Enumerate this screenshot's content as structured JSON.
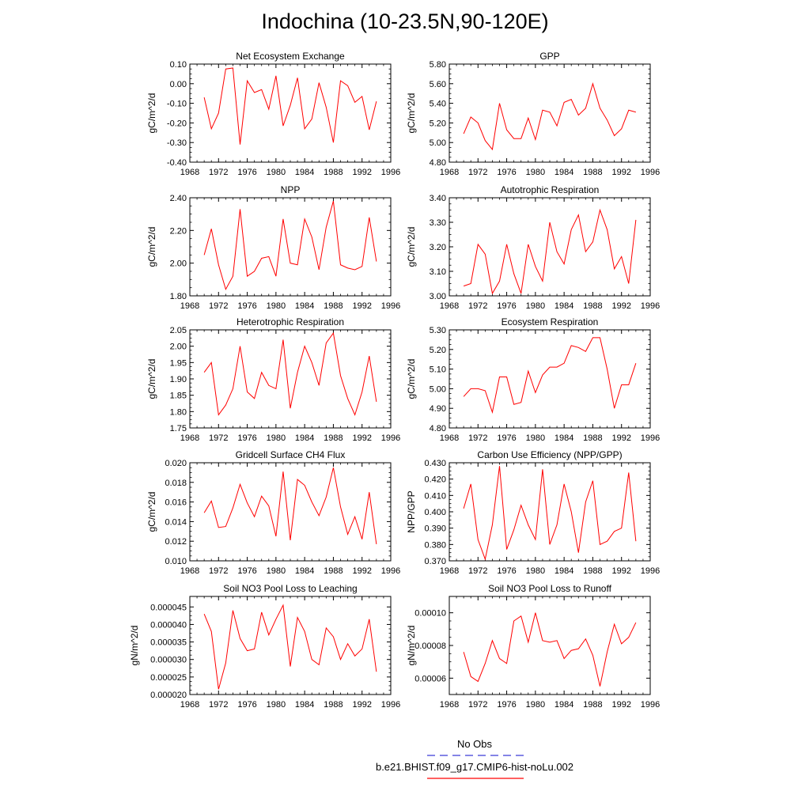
{
  "page_title": "Indochina (10-23.5N,90-120E)",
  "legend": {
    "obs_label": "No Obs",
    "model_label": "b.e21.BHIST.f09_g17.CMIP6-hist-noLu.002",
    "obs_color": "#3b3bd6",
    "model_color": "#ff0000"
  },
  "chart_data": [
    {
      "type": "line",
      "title": "Net Ecosystem Exchange",
      "xlabel": "",
      "ylabel": "gC/m^2/d",
      "xlim": [
        1968,
        1996
      ],
      "ylim": [
        -0.4,
        0.1
      ],
      "x_ticks": [
        1968,
        1972,
        1976,
        1980,
        1984,
        1988,
        1992,
        1996
      ],
      "y_ticks": [
        "0.10",
        "0.00",
        "-0.10",
        "-0.20",
        "-0.30",
        "-0.40"
      ],
      "y_tick_values": [
        0.1,
        0.0,
        -0.1,
        -0.2,
        -0.3,
        -0.4
      ],
      "x": [
        1970,
        1971,
        1972,
        1973,
        1974,
        1975,
        1976,
        1977,
        1978,
        1979,
        1980,
        1981,
        1982,
        1983,
        1984,
        1985,
        1986,
        1987,
        1988,
        1989,
        1990,
        1991,
        1992,
        1993,
        1994
      ],
      "series": [
        {
          "color": "#ff0000",
          "values": [
            -0.07,
            -0.23,
            -0.15,
            0.075,
            0.08,
            -0.31,
            0.015,
            -0.045,
            -0.03,
            -0.13,
            0.04,
            -0.215,
            -0.11,
            0.03,
            -0.23,
            -0.18,
            0.005,
            -0.12,
            -0.3,
            0.015,
            -0.01,
            -0.095,
            -0.065,
            -0.235,
            -0.09
          ]
        }
      ]
    },
    {
      "type": "line",
      "title": "GPP",
      "xlabel": "",
      "ylabel": "gC/m^2/d",
      "xlim": [
        1968,
        1996
      ],
      "ylim": [
        4.8,
        5.8
      ],
      "x_ticks": [
        1968,
        1972,
        1976,
        1980,
        1984,
        1988,
        1992,
        1996
      ],
      "y_ticks": [
        "5.80",
        "5.60",
        "5.40",
        "5.20",
        "5.00",
        "4.80"
      ],
      "y_tick_values": [
        5.8,
        5.6,
        5.4,
        5.2,
        5.0,
        4.8
      ],
      "x": [
        1970,
        1971,
        1972,
        1973,
        1974,
        1975,
        1976,
        1977,
        1978,
        1979,
        1980,
        1981,
        1982,
        1983,
        1984,
        1985,
        1986,
        1987,
        1988,
        1989,
        1990,
        1991,
        1992,
        1993,
        1994
      ],
      "series": [
        {
          "color": "#ff0000",
          "values": [
            5.09,
            5.26,
            5.2,
            5.02,
            4.93,
            5.4,
            5.13,
            5.04,
            5.04,
            5.25,
            5.03,
            5.33,
            5.31,
            5.17,
            5.41,
            5.44,
            5.28,
            5.35,
            5.6,
            5.35,
            5.23,
            5.07,
            5.14,
            5.33,
            5.31
          ]
        }
      ]
    },
    {
      "type": "line",
      "title": "NPP",
      "xlabel": "",
      "ylabel": "gC/m^2/d",
      "xlim": [
        1968,
        1996
      ],
      "ylim": [
        1.8,
        2.4
      ],
      "x_ticks": [
        1968,
        1972,
        1976,
        1980,
        1984,
        1988,
        1992,
        1996
      ],
      "y_ticks": [
        "2.40",
        "2.20",
        "2.00",
        "1.80"
      ],
      "y_tick_values": [
        2.4,
        2.2,
        2.0,
        1.8
      ],
      "x": [
        1970,
        1971,
        1972,
        1973,
        1974,
        1975,
        1976,
        1977,
        1978,
        1979,
        1980,
        1981,
        1982,
        1983,
        1984,
        1985,
        1986,
        1987,
        1988,
        1989,
        1990,
        1991,
        1992,
        1993,
        1994
      ],
      "series": [
        {
          "color": "#ff0000",
          "values": [
            2.05,
            2.21,
            1.99,
            1.84,
            1.92,
            2.33,
            1.92,
            1.95,
            2.03,
            2.04,
            1.92,
            2.27,
            2.0,
            1.99,
            2.27,
            2.16,
            1.96,
            2.22,
            2.38,
            1.99,
            1.97,
            1.96,
            1.98,
            2.28,
            2.01
          ]
        }
      ]
    },
    {
      "type": "line",
      "title": "Autotrophic Respiration",
      "xlabel": "",
      "ylabel": "gC/m^2/d",
      "xlim": [
        1968,
        1996
      ],
      "ylim": [
        3.0,
        3.4
      ],
      "x_ticks": [
        1968,
        1972,
        1976,
        1980,
        1984,
        1988,
        1992,
        1996
      ],
      "y_ticks": [
        "3.40",
        "3.30",
        "3.20",
        "3.10",
        "3.00"
      ],
      "y_tick_values": [
        3.4,
        3.3,
        3.2,
        3.1,
        3.0
      ],
      "x": [
        1970,
        1971,
        1972,
        1973,
        1974,
        1975,
        1976,
        1977,
        1978,
        1979,
        1980,
        1981,
        1982,
        1983,
        1984,
        1985,
        1986,
        1987,
        1988,
        1989,
        1990,
        1991,
        1992,
        1993,
        1994
      ],
      "series": [
        {
          "color": "#ff0000",
          "values": [
            3.04,
            3.05,
            3.21,
            3.17,
            3.01,
            3.06,
            3.21,
            3.09,
            3.01,
            3.21,
            3.12,
            3.06,
            3.3,
            3.18,
            3.13,
            3.27,
            3.33,
            3.18,
            3.22,
            3.35,
            3.27,
            3.11,
            3.16,
            3.05,
            3.31
          ]
        }
      ]
    },
    {
      "type": "line",
      "title": "Heterotrophic Respiration",
      "xlabel": "",
      "ylabel": "gC/m^2/d",
      "xlim": [
        1968,
        1996
      ],
      "ylim": [
        1.75,
        2.05
      ],
      "x_ticks": [
        1968,
        1972,
        1976,
        1980,
        1984,
        1988,
        1992,
        1996
      ],
      "y_ticks": [
        "2.05",
        "2.00",
        "1.95",
        "1.90",
        "1.85",
        "1.80",
        "1.75"
      ],
      "y_tick_values": [
        2.05,
        2.0,
        1.95,
        1.9,
        1.85,
        1.8,
        1.75
      ],
      "x": [
        1970,
        1971,
        1972,
        1973,
        1974,
        1975,
        1976,
        1977,
        1978,
        1979,
        1980,
        1981,
        1982,
        1983,
        1984,
        1985,
        1986,
        1987,
        1988,
        1989,
        1990,
        1991,
        1992,
        1993,
        1994
      ],
      "series": [
        {
          "color": "#ff0000",
          "values": [
            1.92,
            1.95,
            1.79,
            1.82,
            1.87,
            2.0,
            1.86,
            1.84,
            1.92,
            1.88,
            1.87,
            2.02,
            1.81,
            1.92,
            2.0,
            1.95,
            1.88,
            2.01,
            2.04,
            1.91,
            1.84,
            1.79,
            1.86,
            1.97,
            1.83
          ]
        }
      ]
    },
    {
      "type": "line",
      "title": "Ecosystem Respiration",
      "xlabel": "",
      "ylabel": "gC/m^2/d",
      "xlim": [
        1968,
        1996
      ],
      "ylim": [
        4.8,
        5.3
      ],
      "x_ticks": [
        1968,
        1972,
        1976,
        1980,
        1984,
        1988,
        1992,
        1996
      ],
      "y_ticks": [
        "5.30",
        "5.20",
        "5.10",
        "5.00",
        "4.90",
        "4.80"
      ],
      "y_tick_values": [
        5.3,
        5.2,
        5.1,
        5.0,
        4.9,
        4.8
      ],
      "x": [
        1970,
        1971,
        1972,
        1973,
        1974,
        1975,
        1976,
        1977,
        1978,
        1979,
        1980,
        1981,
        1982,
        1983,
        1984,
        1985,
        1986,
        1987,
        1988,
        1989,
        1990,
        1991,
        1992,
        1993,
        1994
      ],
      "series": [
        {
          "color": "#ff0000",
          "values": [
            4.96,
            5.0,
            5.0,
            4.99,
            4.88,
            5.06,
            5.06,
            4.92,
            4.93,
            5.09,
            4.98,
            5.07,
            5.11,
            5.11,
            5.13,
            5.22,
            5.21,
            5.19,
            5.26,
            5.26,
            5.1,
            4.9,
            5.02,
            5.02,
            5.13
          ]
        }
      ]
    },
    {
      "type": "line",
      "title": "Gridcell Surface CH4 Flux",
      "xlabel": "",
      "ylabel": "gC/m^2/d",
      "xlim": [
        1968,
        1996
      ],
      "ylim": [
        0.01,
        0.02
      ],
      "x_ticks": [
        1968,
        1972,
        1976,
        1980,
        1984,
        1988,
        1992,
        1996
      ],
      "y_ticks": [
        "0.020",
        "0.018",
        "0.016",
        "0.014",
        "0.012",
        "0.010"
      ],
      "y_tick_values": [
        0.02,
        0.018,
        0.016,
        0.014,
        0.012,
        0.01
      ],
      "x": [
        1970,
        1971,
        1972,
        1973,
        1974,
        1975,
        1976,
        1977,
        1978,
        1979,
        1980,
        1981,
        1982,
        1983,
        1984,
        1985,
        1986,
        1987,
        1988,
        1989,
        1990,
        1991,
        1992,
        1993,
        1994
      ],
      "series": [
        {
          "color": "#ff0000",
          "values": [
            0.0149,
            0.0161,
            0.0134,
            0.0135,
            0.0154,
            0.0178,
            0.0159,
            0.0145,
            0.0166,
            0.0156,
            0.0125,
            0.0191,
            0.0121,
            0.0183,
            0.0177,
            0.016,
            0.0146,
            0.0165,
            0.0195,
            0.0155,
            0.0127,
            0.0145,
            0.0122,
            0.017,
            0.0117
          ]
        }
      ]
    },
    {
      "type": "line",
      "title": "Carbon Use Efficiency (NPP/GPP)",
      "xlabel": "",
      "ylabel": "NPP/GPP",
      "xlim": [
        1968,
        1996
      ],
      "ylim": [
        0.37,
        0.43
      ],
      "x_ticks": [
        1968,
        1972,
        1976,
        1980,
        1984,
        1988,
        1992,
        1996
      ],
      "y_ticks": [
        "0.430",
        "0.420",
        "0.410",
        "0.400",
        "0.390",
        "0.380",
        "0.370"
      ],
      "y_tick_values": [
        0.43,
        0.42,
        0.41,
        0.4,
        0.39,
        0.38,
        0.37
      ],
      "x": [
        1970,
        1971,
        1972,
        1973,
        1974,
        1975,
        1976,
        1977,
        1978,
        1979,
        1980,
        1981,
        1982,
        1983,
        1984,
        1985,
        1986,
        1987,
        1988,
        1989,
        1990,
        1991,
        1992,
        1993,
        1994
      ],
      "series": [
        {
          "color": "#ff0000",
          "values": [
            0.402,
            0.417,
            0.383,
            0.371,
            0.392,
            0.428,
            0.377,
            0.389,
            0.404,
            0.392,
            0.383,
            0.426,
            0.38,
            0.392,
            0.417,
            0.4,
            0.375,
            0.406,
            0.419,
            0.38,
            0.382,
            0.388,
            0.39,
            0.424,
            0.382
          ]
        }
      ]
    },
    {
      "type": "line",
      "title": "Soil NO3 Pool Loss to Leaching",
      "xlabel": "",
      "ylabel": "gN/m^2/d",
      "xlim": [
        1968,
        1996
      ],
      "ylim": [
        2e-05,
        4.8e-05
      ],
      "x_ticks": [
        1968,
        1972,
        1976,
        1980,
        1984,
        1988,
        1992,
        1996
      ],
      "y_ticks": [
        "0.000045",
        "0.000040",
        "0.000035",
        "0.000030",
        "0.000025",
        "0.000020"
      ],
      "y_tick_values": [
        4.5e-05,
        4e-05,
        3.5e-05,
        3e-05,
        2.5e-05,
        2e-05
      ],
      "x": [
        1970,
        1971,
        1972,
        1973,
        1974,
        1975,
        1976,
        1977,
        1978,
        1979,
        1980,
        1981,
        1982,
        1983,
        1984,
        1985,
        1986,
        1987,
        1988,
        1989,
        1990,
        1991,
        1992,
        1993,
        1994
      ],
      "series": [
        {
          "color": "#ff0000",
          "values": [
            4.3e-05,
            3.8e-05,
            2.15e-05,
            2.9e-05,
            4.4e-05,
            3.6e-05,
            3.25e-05,
            3.3e-05,
            4.35e-05,
            3.7e-05,
            4.15e-05,
            4.55e-05,
            2.8e-05,
            4.2e-05,
            3.8e-05,
            3e-05,
            2.85e-05,
            3.9e-05,
            3.65e-05,
            3e-05,
            3.45e-05,
            3.1e-05,
            3.3e-05,
            4.15e-05,
            2.65e-05
          ]
        }
      ]
    },
    {
      "type": "line",
      "title": "Soil NO3 Pool Loss to Runoff",
      "xlabel": "",
      "ylabel": "gN/m^2/d",
      "xlim": [
        1968,
        1996
      ],
      "ylim": [
        5e-05,
        0.00011
      ],
      "x_ticks": [
        1968,
        1972,
        1976,
        1980,
        1984,
        1988,
        1992,
        1996
      ],
      "y_ticks": [
        "0.00010",
        "0.00008",
        "0.00006"
      ],
      "y_tick_values": [
        0.0001,
        8e-05,
        6e-05
      ],
      "x": [
        1970,
        1971,
        1972,
        1973,
        1974,
        1975,
        1976,
        1977,
        1978,
        1979,
        1980,
        1981,
        1982,
        1983,
        1984,
        1985,
        1986,
        1987,
        1988,
        1989,
        1990,
        1991,
        1992,
        1993,
        1994
      ],
      "series": [
        {
          "color": "#ff0000",
          "values": [
            7.6e-05,
            6.1e-05,
            5.8e-05,
            6.9e-05,
            8.3e-05,
            7.2e-05,
            6.9e-05,
            9.5e-05,
            9.8e-05,
            8.2e-05,
            0.0001,
            8.3e-05,
            8.2e-05,
            8.3e-05,
            7.2e-05,
            7.7e-05,
            7.8e-05,
            8.4e-05,
            7.4e-05,
            5.5e-05,
            7.6e-05,
            9.3e-05,
            8.1e-05,
            8.5e-05,
            9.4e-05
          ]
        }
      ]
    }
  ]
}
